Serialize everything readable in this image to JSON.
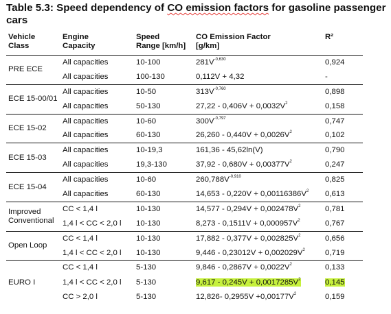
{
  "caption": {
    "part1": "Table 5.3: Speed dependency of ",
    "part2": "CO emission factors",
    "part3": " for gasoline passenger cars"
  },
  "table": {
    "headers": [
      [
        "Vehicle",
        "Class"
      ],
      [
        "Engine",
        "Capacity"
      ],
      [
        "Speed",
        "Range [km/h]"
      ],
      [
        "CO Emission Factor",
        "[g/km]"
      ],
      [
        "R²"
      ]
    ],
    "groups": [
      {
        "cls": [
          "PRE ECE"
        ],
        "rows": [
          {
            "engine": "All capacities",
            "speed": "10-100",
            "co": [
              "281V",
              "-0,630",
              ""
            ],
            "r2": "0,924"
          },
          {
            "engine": "All capacities",
            "speed": "100-130",
            "co": [
              "0,112V + 4,32"
            ],
            "r2": "-"
          }
        ]
      },
      {
        "cls": [
          "ECE 15-00/01"
        ],
        "rows": [
          {
            "engine": "All capacities",
            "speed": "10-50",
            "co": [
              "313V",
              "-0,760",
              ""
            ],
            "r2": "0,898"
          },
          {
            "engine": "All capacities",
            "speed": "50-130",
            "co": [
              "27,22 - 0,406V + 0,0032V",
              "2",
              ""
            ],
            "r2": "0,158"
          }
        ]
      },
      {
        "cls": [
          "ECE 15-02"
        ],
        "rows": [
          {
            "engine": "All capacities",
            "speed": "10-60",
            "co": [
              "300V",
              "-0,797",
              ""
            ],
            "r2": "0,747"
          },
          {
            "engine": "All capacities",
            "speed": "60-130",
            "co": [
              "26,260 - 0,440V + 0,0026V",
              "2",
              ""
            ],
            "r2": "0,102"
          }
        ]
      },
      {
        "cls": [
          "ECE 15-03"
        ],
        "rows": [
          {
            "engine": "All capacities",
            "speed": "10-19,3",
            "co": [
              "161,36 - 45,62ln(V)"
            ],
            "r2": "0,790"
          },
          {
            "engine": "All capacities",
            "speed": "19,3-130",
            "co": [
              "37,92 - 0,680V + 0,00377V",
              "2",
              ""
            ],
            "r2": "0,247"
          }
        ]
      },
      {
        "cls": [
          "ECE 15-04"
        ],
        "rows": [
          {
            "engine": "All capacities",
            "speed": "10-60",
            "co": [
              "260,788V",
              "-0,910",
              ""
            ],
            "r2": "0,825"
          },
          {
            "engine": "All capacities",
            "speed": "60-130",
            "co": [
              "14,653 - 0,220V + 0,00116386V",
              "2",
              ""
            ],
            "r2": "0,613"
          }
        ]
      },
      {
        "cls": [
          "Improved",
          "Conventional"
        ],
        "rows": [
          {
            "engine": "CC < 1,4 l",
            "speed": "10-130",
            "co": [
              "14,577 - 0,294V + 0,002478V",
              "2",
              ""
            ],
            "r2": "0,781"
          },
          {
            "engine": "1,4 l < CC < 2,0 l",
            "speed": "10-130",
            "co": [
              "8,273 - 0,1511V + 0,000957V",
              "2",
              ""
            ],
            "r2": "0,767"
          }
        ]
      },
      {
        "cls": [
          "Open Loop"
        ],
        "rows": [
          {
            "engine": "CC < 1,4 l",
            "speed": "10-130",
            "co": [
              "17,882 - 0,377V + 0,002825V",
              "2",
              ""
            ],
            "r2": "0,656"
          },
          {
            "engine": "1,4 l < CC < 2,0 l",
            "speed": "10-130",
            "co": [
              "9,446 - 0,23012V + 0,002029V",
              "2",
              ""
            ],
            "r2": "0,719"
          }
        ]
      },
      {
        "cls": [
          "EURO I"
        ],
        "rows": [
          {
            "engine": "CC < 1,4 l",
            "speed": "5-130",
            "co": [
              "9,846 - 0,2867V + 0,0022V",
              "2",
              ""
            ],
            "r2": "0,133"
          },
          {
            "engine": "1,4 l < CC < 2,0 l",
            "speed": "5-130",
            "co": [
              "9,617 - 0,245V + 0,0017285V",
              "2",
              ""
            ],
            "r2": "0,145",
            "highlight": true
          },
          {
            "engine": "CC > 2,0 l",
            "speed": "5-130",
            "co": [
              "12,826- 0,2955V +0,00177V",
              "2",
              ""
            ],
            "r2": "0,159"
          }
        ]
      }
    ]
  },
  "colors": {
    "highlight": "#c6f13c",
    "spellcheck_underline": "#e53935",
    "text": "#111111"
  }
}
